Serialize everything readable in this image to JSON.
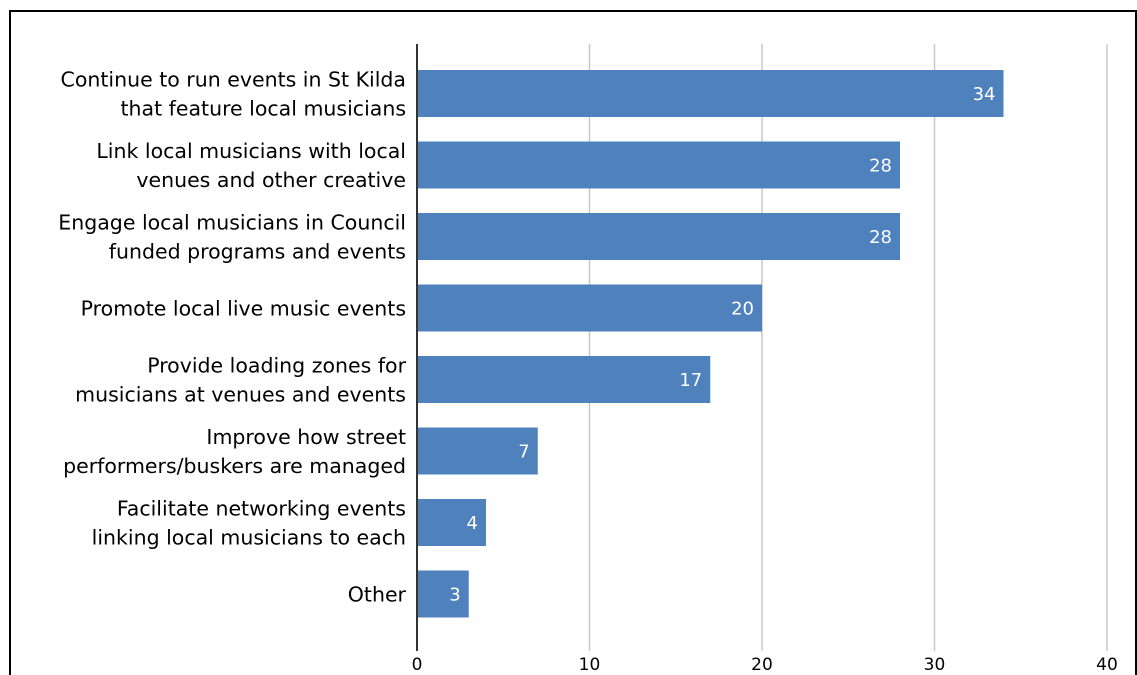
{
  "chart_data": {
    "type": "bar",
    "orientation": "horizontal",
    "categories": [
      [
        "Continue to run events in St Kilda",
        "that feature local musicians"
      ],
      [
        "Link local musicians with local",
        "venues and other creative"
      ],
      [
        "Engage local musicians in Council",
        "funded programs and events"
      ],
      [
        "Promote local live music events"
      ],
      [
        "Provide loading zones for",
        "musicians at venues and events"
      ],
      [
        "Improve how street",
        "performers/buskers are managed"
      ],
      [
        "Facilitate networking events",
        "linking local musicians to each"
      ],
      [
        "Other"
      ]
    ],
    "values": [
      34,
      28,
      28,
      20,
      17,
      7,
      4,
      3
    ],
    "value_labels": [
      "34",
      "28",
      "28",
      "20",
      "17",
      "7",
      "4",
      "3"
    ],
    "x_ticks": [
      "0",
      "10",
      "20",
      "30",
      "40"
    ],
    "xlim": [
      0,
      40
    ],
    "grid": true,
    "bar_color": "#4f81bd",
    "gridline_color": "#c8c8c8",
    "value_label_color": "#ffffff"
  }
}
